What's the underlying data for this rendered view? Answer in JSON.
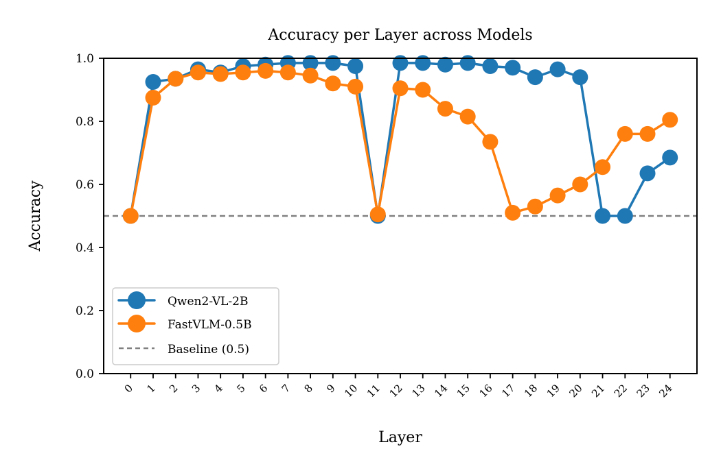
{
  "chart_data": {
    "type": "line",
    "title": "Accuracy per Layer across Models",
    "xlabel": "Layer",
    "ylabel": "Accuracy",
    "x": [
      0,
      1,
      2,
      3,
      4,
      5,
      6,
      7,
      8,
      9,
      10,
      11,
      12,
      13,
      14,
      15,
      16,
      17,
      18,
      19,
      20,
      21,
      22,
      23,
      24
    ],
    "x_tick_labels": [
      "0",
      "1",
      "2",
      "3",
      "4",
      "5",
      "6",
      "7",
      "8",
      "9",
      "10",
      "11",
      "12",
      "13",
      "14",
      "15",
      "16",
      "17",
      "18",
      "19",
      "20",
      "21",
      "22",
      "23",
      "24"
    ],
    "y_ticks": [
      "0.0",
      "0.2",
      "0.4",
      "0.6",
      "0.8",
      "1.0"
    ],
    "ylim": [
      0.0,
      1.0
    ],
    "grid": false,
    "legend_position": "lower-left",
    "series": [
      {
        "name": "Qwen2-VL-2B",
        "color": "#1f77b4",
        "marker": "circle",
        "values": [
          0.5,
          0.925,
          0.935,
          0.965,
          0.955,
          0.975,
          0.98,
          0.985,
          0.985,
          0.985,
          0.975,
          0.5,
          0.985,
          0.985,
          0.98,
          0.985,
          0.975,
          0.97,
          0.94,
          0.965,
          0.94,
          0.5,
          0.5,
          0.635,
          0.685
        ]
      },
      {
        "name": "FastVLM-0.5B",
        "color": "#ff7f0e",
        "marker": "circle",
        "values": [
          0.5,
          0.875,
          0.935,
          0.955,
          0.95,
          0.955,
          0.96,
          0.955,
          0.945,
          0.92,
          0.91,
          0.505,
          0.905,
          0.9,
          0.84,
          0.815,
          0.735,
          0.51,
          0.53,
          0.565,
          0.6,
          0.655,
          0.76,
          0.76,
          0.805
        ]
      }
    ],
    "baseline": {
      "name": "Baseline (0.5)",
      "value": 0.5,
      "color": "#808080",
      "style": "dashed"
    }
  }
}
